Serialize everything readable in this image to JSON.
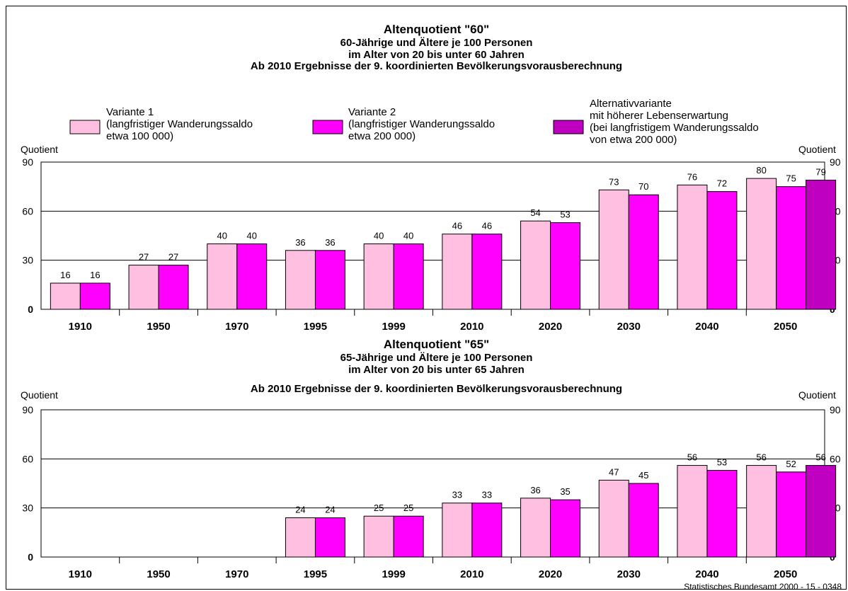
{
  "footer": "Statistisches Bundesamt 2000 - 15 - 0348",
  "legend": [
    {
      "lines": [
        "Variante 1",
        "(langfristiger Wanderungssaldo",
        "etwa 100 000)"
      ],
      "color": "#ffbfe0"
    },
    {
      "lines": [
        "Variante 2",
        "(langfristiger Wanderungssaldo",
        "etwa 200 000)"
      ],
      "color": "#ff00ff"
    },
    {
      "lines": [
        "Alternativvariante",
        "mit höherer Lebenserwartung",
        "(bei langfristigem Wanderungssaldo",
        "von etwa 200 000)"
      ],
      "color": "#c000c0"
    }
  ],
  "chart_data": [
    {
      "type": "bar",
      "title": "Altenquotient \"60\"",
      "subtitle": [
        "60-Jährige und Ältere je 100 Personen",
        "im Alter von 20 bis unter 60 Jahren",
        "Ab 2010 Ergebnisse der 9. koordinierten Bevölkerungsvorausberechnung"
      ],
      "ylabel_left": "Quotient",
      "ylabel_right": "Quotient",
      "ylim": [
        0,
        90
      ],
      "yticks": [
        0,
        30,
        60,
        90
      ],
      "grid": true,
      "categories": [
        "1910",
        "1950",
        "1970",
        "1995",
        "1999",
        "2010",
        "2020",
        "2030",
        "2040",
        "2050"
      ],
      "series": [
        {
          "name": "Variante 1",
          "values": [
            16,
            27,
            40,
            36,
            40,
            46,
            54,
            73,
            76,
            80
          ]
        },
        {
          "name": "Variante 2",
          "values": [
            16,
            27,
            40,
            36,
            40,
            46,
            53,
            70,
            72,
            75
          ]
        },
        {
          "name": "Alternativvariante",
          "values": [
            null,
            null,
            null,
            null,
            null,
            null,
            null,
            null,
            null,
            79
          ]
        }
      ]
    },
    {
      "type": "bar",
      "title": "Altenquotient \"65\"",
      "subtitle": [
        "65-Jährige und Ältere je 100 Personen",
        "im Alter von 20 bis unter 65 Jahren",
        "Ab 2010 Ergebnisse der 9. koordinierten Bevölkerungsvorausberechnung"
      ],
      "ylabel_left": "Quotient",
      "ylabel_right": "Quotient",
      "ylim": [
        0,
        90
      ],
      "yticks": [
        0,
        30,
        60,
        90
      ],
      "grid": true,
      "categories": [
        "1910",
        "1950",
        "1970",
        "1995",
        "1999",
        "2010",
        "2020",
        "2030",
        "2040",
        "2050"
      ],
      "series": [
        {
          "name": "Variante 1",
          "values": [
            null,
            null,
            null,
            24,
            25,
            33,
            36,
            47,
            56,
            56
          ]
        },
        {
          "name": "Variante 2",
          "values": [
            null,
            null,
            null,
            24,
            25,
            33,
            35,
            45,
            53,
            52
          ]
        },
        {
          "name": "Alternativvariante",
          "values": [
            null,
            null,
            null,
            null,
            null,
            null,
            null,
            null,
            null,
            56
          ]
        }
      ]
    }
  ]
}
